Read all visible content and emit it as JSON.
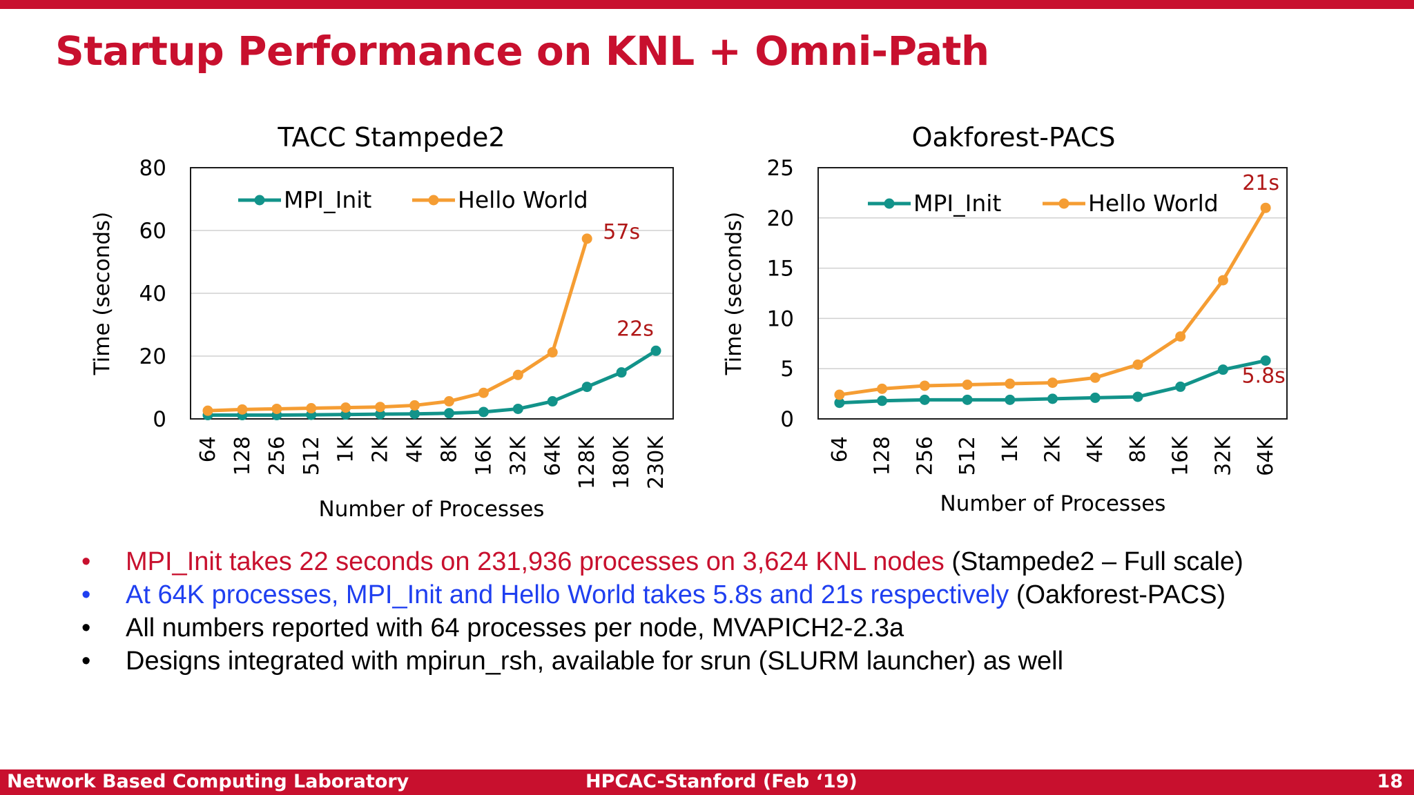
{
  "slide": {
    "title": "Startup Performance on KNL + Omni-Path",
    "footer": {
      "left": "Network Based Computing Laboratory",
      "center": "HPCAC-Stanford (Feb ‘19)",
      "page": "18"
    },
    "bullets": [
      {
        "color": "#c8102e",
        "text": "MPI_Init takes 22 seconds on 231,936 processes on 3,624 KNL nodes",
        "suffix": " (Stampede2 – Full scale)"
      },
      {
        "color": "#1f3ff0",
        "text": "At 64K processes, MPI_Init and Hello World takes 5.8s and 21s respectively",
        "suffix": " (Oakforest-PACS)"
      },
      {
        "color": "#000000",
        "text": "All numbers reported with 64 processes per node, MVAPICH2-2.3a",
        "suffix": ""
      },
      {
        "color": "#000000",
        "text": "Designs integrated with mpirun_rsh, available for srun (SLURM launcher) as well",
        "suffix": ""
      }
    ],
    "colors": {
      "accent": "#c8102e",
      "mpi_init": "#12938a",
      "hello_world": "#f59d33",
      "annotation": "#b01818"
    }
  },
  "chart_data": [
    {
      "type": "line",
      "title": "TACC Stampede2",
      "xlabel": "Number of Processes",
      "ylabel": "Time (seconds)",
      "ylim": [
        0,
        80
      ],
      "yticks": [
        0,
        20,
        40,
        60,
        80
      ],
      "grid": true,
      "legend": "top",
      "categories": [
        "64",
        "128",
        "256",
        "512",
        "1K",
        "2K",
        "4K",
        "8K",
        "16K",
        "32K",
        "64K",
        "128K",
        "180K",
        "230K"
      ],
      "series": [
        {
          "name": "MPI_Init",
          "color": "#12938a",
          "values": [
            1.2,
            1.2,
            1.2,
            1.3,
            1.4,
            1.5,
            1.6,
            1.8,
            2.2,
            3.2,
            5.6,
            10.2,
            14.8,
            21.7
          ]
        },
        {
          "name": "Hello World",
          "color": "#f59d33",
          "values": [
            2.6,
            3.0,
            3.2,
            3.4,
            3.6,
            3.8,
            4.3,
            5.6,
            8.3,
            14.0,
            21.2,
            57.4,
            null,
            null
          ]
        }
      ],
      "annotations": [
        {
          "text": "57s",
          "series": 1,
          "index": 11
        },
        {
          "text": "22s",
          "series": 0,
          "index": 13
        }
      ]
    },
    {
      "type": "line",
      "title": "Oakforest-PACS",
      "xlabel": "Number of Processes",
      "ylabel": "Time (seconds)",
      "ylim": [
        0,
        25
      ],
      "yticks": [
        0,
        5,
        10,
        15,
        20,
        25
      ],
      "grid": true,
      "legend": "top",
      "categories": [
        "64",
        "128",
        "256",
        "512",
        "1K",
        "2K",
        "4K",
        "8K",
        "16K",
        "32K",
        "64K"
      ],
      "series": [
        {
          "name": "MPI_Init",
          "color": "#12938a",
          "values": [
            1.6,
            1.8,
            1.9,
            1.9,
            1.9,
            2.0,
            2.1,
            2.2,
            3.2,
            4.9,
            5.8
          ]
        },
        {
          "name": "Hello World",
          "color": "#f59d33",
          "values": [
            2.4,
            3.0,
            3.3,
            3.4,
            3.5,
            3.6,
            4.1,
            5.4,
            8.2,
            13.8,
            21.0
          ]
        }
      ],
      "annotations": [
        {
          "text": "21s",
          "series": 1,
          "index": 10
        },
        {
          "text": "5.8s",
          "series": 0,
          "index": 10
        }
      ]
    }
  ]
}
